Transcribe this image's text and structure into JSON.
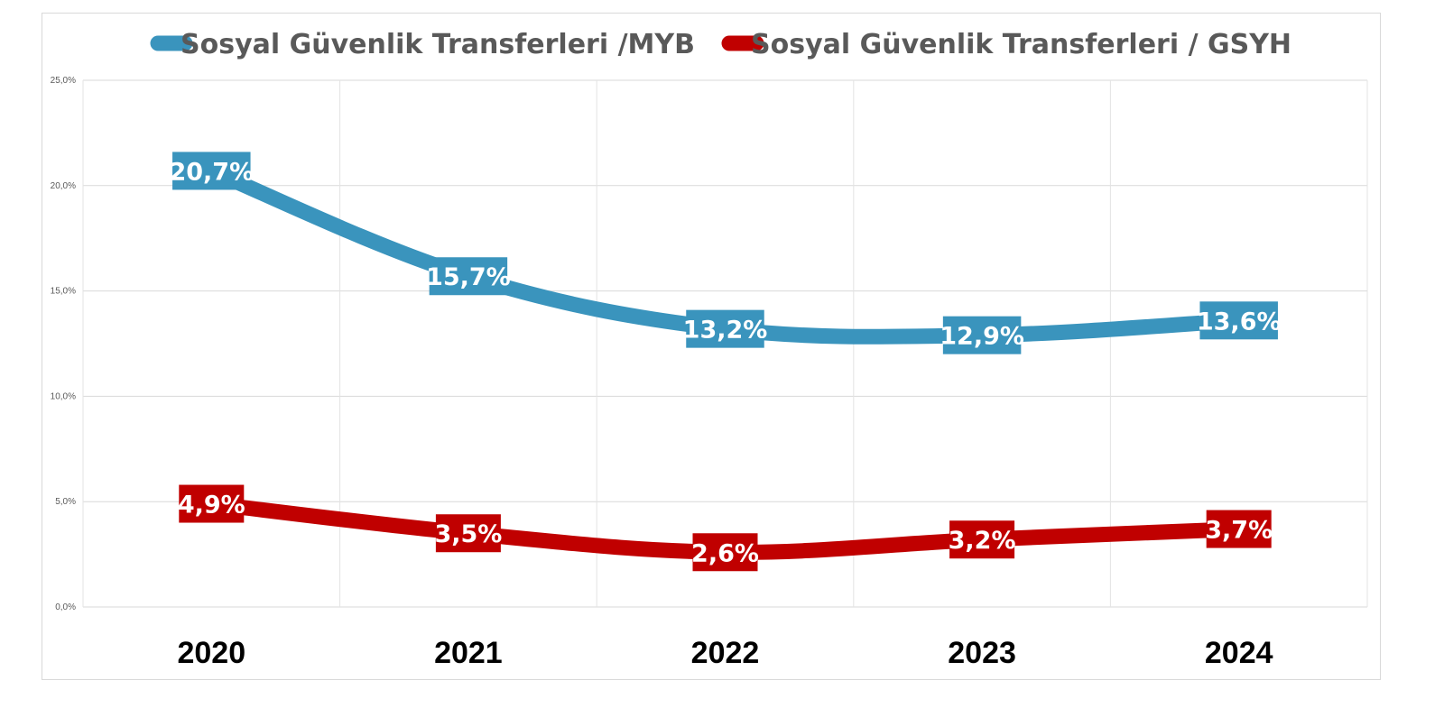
{
  "chart_data": {
    "type": "line",
    "categories": [
      "2020",
      "2021",
      "2022",
      "2023",
      "2024"
    ],
    "series": [
      {
        "name": "Sosyal Güvenlik Transferleri /MYB",
        "color": "#3A94BD",
        "values": [
          20.7,
          15.7,
          13.2,
          12.9,
          13.6
        ],
        "labels": [
          "20,7%",
          "15,7%",
          "13,2%",
          "12,9%",
          "13,6%"
        ]
      },
      {
        "name": "Sosyal Güvenlik Transferleri / GSYH",
        "color": "#C00000",
        "values": [
          4.9,
          3.5,
          2.6,
          3.2,
          3.7
        ],
        "labels": [
          "4,9%",
          "3,5%",
          "2,6%",
          "3,2%",
          "3,7%"
        ]
      }
    ],
    "y_ticks": [
      0,
      5,
      10,
      15,
      20,
      25
    ],
    "y_tick_labels": [
      "0,0%",
      "5,0%",
      "10,0%",
      "15,0%",
      "20,0%",
      "25,0%"
    ],
    "ylim": [
      0,
      25
    ],
    "grid": true,
    "legend_position": "top",
    "smooth": true
  }
}
